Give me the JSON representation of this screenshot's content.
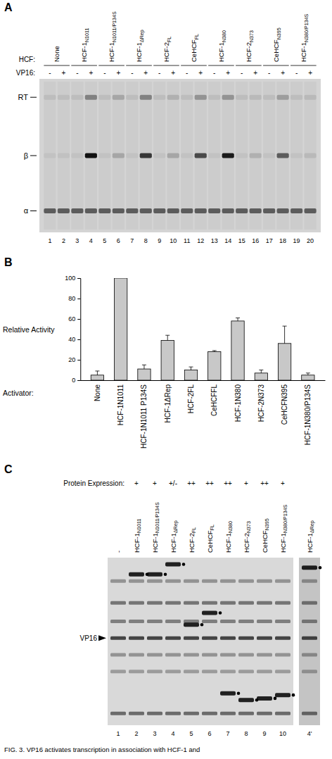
{
  "panel_a": {
    "letter": "A",
    "hcf_heading": "HCF:",
    "vp16_heading": "VP16:",
    "band_labels": {
      "rt": "RT",
      "beta": "β",
      "alpha": "α"
    },
    "groups": [
      {
        "base": "None"
      },
      {
        "base": "HCF-1",
        "sub": "N1011"
      },
      {
        "base": "HCF-1",
        "sub": "N1011/P134S"
      },
      {
        "base": "HCF-1",
        "sub": "ΔRep"
      },
      {
        "base": "HCF-2",
        "sub": "FL"
      },
      {
        "base": "CeHCF",
        "sub": "FL"
      },
      {
        "base": "HCF-1",
        "sub": "N380"
      },
      {
        "base": "HCF-2",
        "sub": "N373"
      },
      {
        "base": "CeHCF",
        "sub": "N395"
      },
      {
        "base": "HCF-1",
        "sub": "N380/P134S"
      }
    ],
    "lanes": [
      {
        "number": 1,
        "vp16": "-",
        "rt": 0.08,
        "beta": 0.05,
        "alpha": 0.6
      },
      {
        "number": 2,
        "vp16": "+",
        "rt": 0.08,
        "beta": 0.06,
        "alpha": 0.6
      },
      {
        "number": 3,
        "vp16": "-",
        "rt": 0.08,
        "beta": 0.05,
        "alpha": 0.6
      },
      {
        "number": 4,
        "vp16": "+",
        "rt": 0.4,
        "beta": 1.0,
        "alpha": 0.6
      },
      {
        "number": 5,
        "vp16": "-",
        "rt": 0.08,
        "beta": 0.05,
        "alpha": 0.6
      },
      {
        "number": 6,
        "vp16": "+",
        "rt": 0.2,
        "beta": 0.2,
        "alpha": 0.6
      },
      {
        "number": 7,
        "vp16": "-",
        "rt": 0.08,
        "beta": 0.05,
        "alpha": 0.6
      },
      {
        "number": 8,
        "vp16": "+",
        "rt": 0.4,
        "beta": 0.8,
        "alpha": 0.6
      },
      {
        "number": 9,
        "vp16": "-",
        "rt": 0.08,
        "beta": 0.05,
        "alpha": 0.6
      },
      {
        "number": 10,
        "vp16": "+",
        "rt": 0.15,
        "beta": 0.2,
        "alpha": 0.6
      },
      {
        "number": 11,
        "vp16": "-",
        "rt": 0.08,
        "beta": 0.05,
        "alpha": 0.6
      },
      {
        "number": 12,
        "vp16": "+",
        "rt": 0.3,
        "beta": 0.7,
        "alpha": 0.6
      },
      {
        "number": 13,
        "vp16": "-",
        "rt": 0.08,
        "beta": 0.05,
        "alpha": 0.6
      },
      {
        "number": 14,
        "vp16": "+",
        "rt": 0.3,
        "beta": 0.95,
        "alpha": 0.6
      },
      {
        "number": 15,
        "vp16": "-",
        "rt": 0.08,
        "beta": 0.05,
        "alpha": 0.6
      },
      {
        "number": 16,
        "vp16": "+",
        "rt": 0.1,
        "beta": 0.15,
        "alpha": 0.6
      },
      {
        "number": 17,
        "vp16": "-",
        "rt": 0.08,
        "beta": 0.05,
        "alpha": 0.6
      },
      {
        "number": 18,
        "vp16": "+",
        "rt": 0.25,
        "beta": 0.6,
        "alpha": 0.6
      },
      {
        "number": 19,
        "vp16": "-",
        "rt": 0.08,
        "beta": 0.05,
        "alpha": 0.6
      },
      {
        "number": 20,
        "vp16": "+",
        "rt": 0.1,
        "beta": 0.1,
        "alpha": 0.6
      }
    ]
  },
  "panel_b": {
    "letter": "B"
  },
  "chart_data": {
    "type": "bar",
    "y_label": "Relative Activity",
    "x_label": "Activator:",
    "categories": [
      "None",
      "HCF-1N1011",
      "HCF-1N1011 P134S",
      "HCF-1ΔRep",
      "HCF-2FL",
      "CeHCFFL",
      "HCF-1N380",
      "HCF-2N373",
      "CeHCFN395",
      "HCF-1N380/P134S"
    ],
    "values": [
      5,
      100,
      11,
      39,
      10,
      28,
      58,
      7,
      36,
      5
    ],
    "errors": [
      4,
      null,
      4,
      5,
      3,
      1,
      3,
      3,
      17,
      2
    ],
    "color": "#c8c8c8",
    "ylim": [
      0,
      100
    ],
    "yticks": [
      0,
      20,
      40,
      60,
      80,
      100
    ],
    "grid": false
  },
  "panel_c": {
    "letter": "C",
    "expression_heading": "Protein Expression:",
    "marker_label": "VP16",
    "lanes": [
      {
        "number": "1",
        "label": {
          "base": "-"
        },
        "expression": null,
        "hcf_mobility": null
      },
      {
        "number": "2",
        "label": {
          "base": "HCF-1",
          "sub": "N1011"
        },
        "expression": "+",
        "hcf_mobility": 0.1
      },
      {
        "number": "3",
        "label": {
          "base": "HCF-1",
          "sub": "N1011/P134S"
        },
        "expression": "+",
        "hcf_mobility": 0.1
      },
      {
        "number": "4",
        "label": {
          "base": "HCF-1",
          "sub": "ΔRep"
        },
        "expression": "+/-",
        "hcf_mobility": 0.04
      },
      {
        "number": "5",
        "label": {
          "base": "HCF-2",
          "sub": "FL"
        },
        "expression": "++",
        "hcf_mobility": 0.4
      },
      {
        "number": "6",
        "label": {
          "base": "CeHCF",
          "sub": "FL"
        },
        "expression": "++",
        "hcf_mobility": 0.33
      },
      {
        "number": "7",
        "label": {
          "base": "HCF-1",
          "sub": "N380"
        },
        "expression": "++",
        "hcf_mobility": 0.81
      },
      {
        "number": "8",
        "label": {
          "base": "HCF-2",
          "sub": "N373"
        },
        "expression": "+",
        "hcf_mobility": 0.85
      },
      {
        "number": "9",
        "label": {
          "base": "CeHCF",
          "sub": "N395"
        },
        "expression": "++",
        "hcf_mobility": 0.84
      },
      {
        "number": "10",
        "label": {
          "base": "HCF-1",
          "sub": "N380/P134S"
        },
        "expression": "+",
        "hcf_mobility": 0.82
      },
      {
        "number": "4'",
        "label": {
          "base": "HCF-1",
          "sub": "ΔRep"
        },
        "expression": null,
        "hcf_mobility": 0.06
      }
    ]
  },
  "caption": "FIG. 3. VP16 activates transcription in association with HCF-1 and"
}
